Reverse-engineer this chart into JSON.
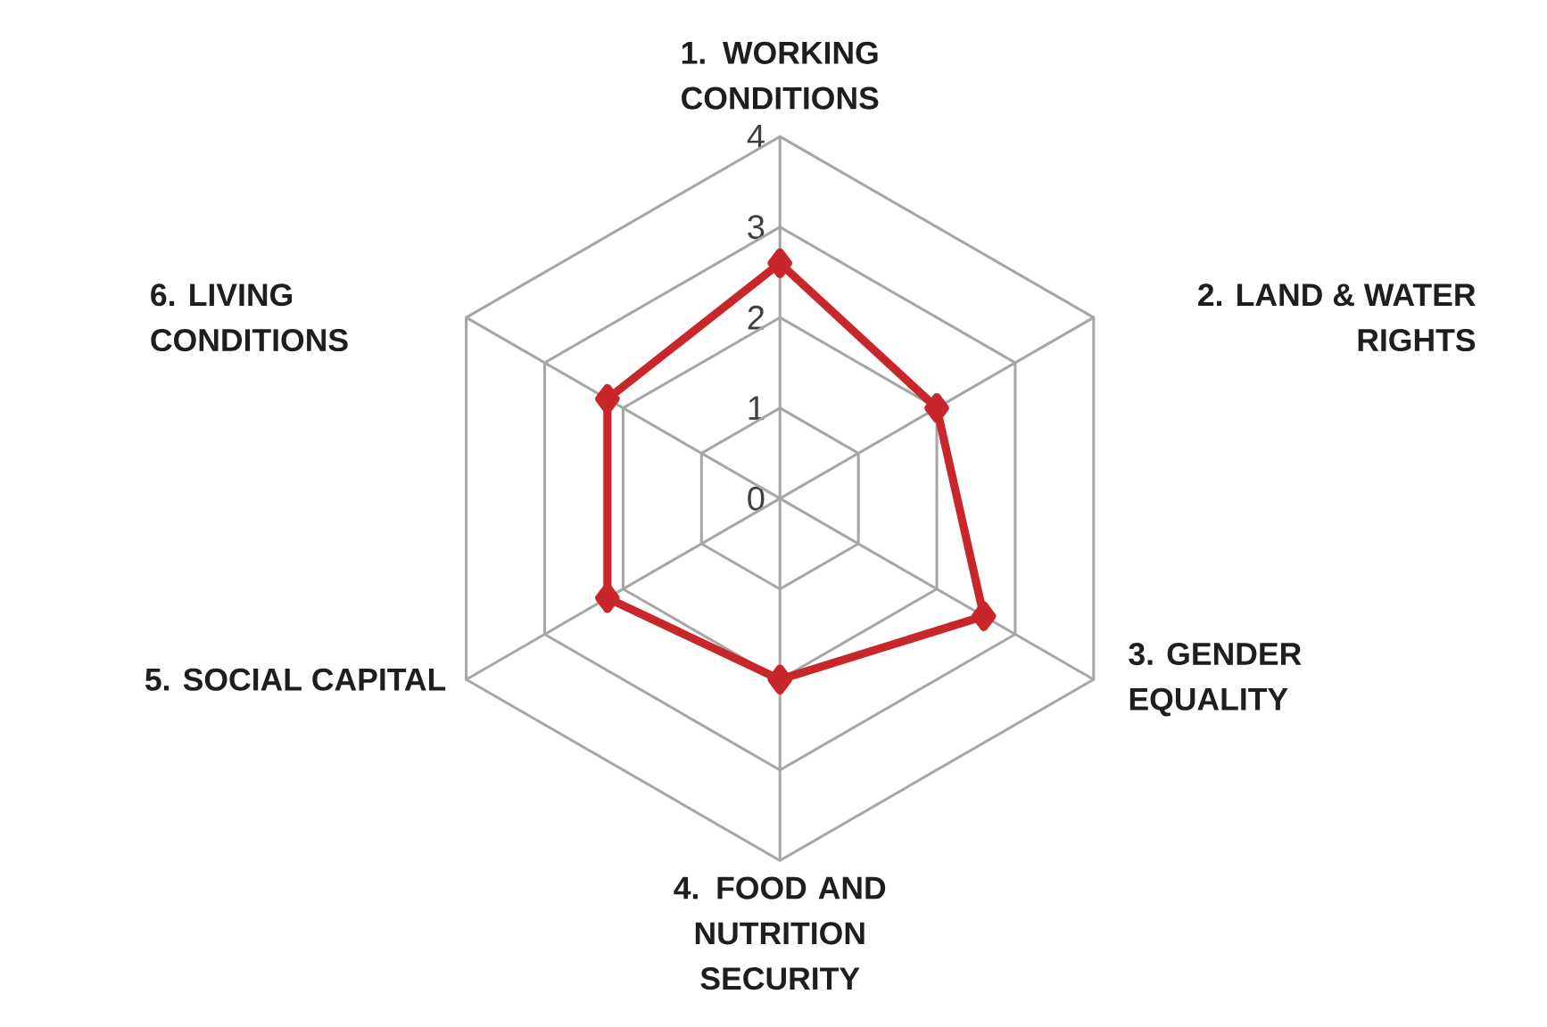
{
  "chart_data": {
    "type": "radar",
    "categories": [
      "1. WORKING CONDITIONS",
      "2. LAND & WATER RIGHTS",
      "3. GENDER EQUALITY",
      "4. FOOD AND NUTRITION SECURITY",
      "5. SOCIAL CAPITAL",
      "6. LIVING CONDITIONS"
    ],
    "series": [
      {
        "color": "#c8262b",
        "values": [
          2.6,
          2.0,
          2.6,
          2.0,
          2.2,
          2.2
        ]
      }
    ],
    "ylim": [
      0,
      4
    ],
    "yticks": [
      0,
      1,
      2,
      3,
      4
    ],
    "grid": true,
    "marker": "diamond",
    "line_style": "solid"
  }
}
